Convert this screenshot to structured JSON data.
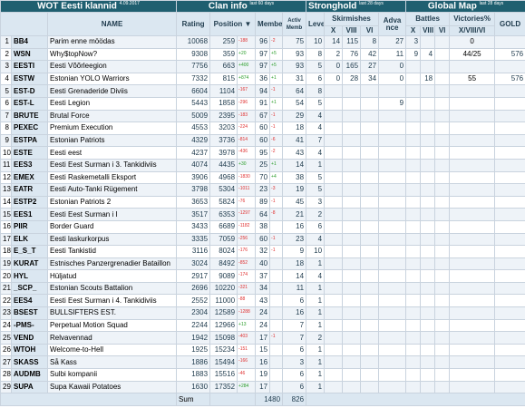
{
  "header": {
    "title": "WOT Eesti klannid",
    "date": "4.09.2017",
    "sections": [
      {
        "title": "Clan info",
        "note": "last 60 days"
      },
      {
        "title": "Stronghold",
        "note": "last 28 days"
      },
      {
        "title": "Global Map",
        "note": "last 28 days"
      }
    ]
  },
  "columns": {
    "name": "NAME",
    "rating": "Rating",
    "position": "Position ▼",
    "members": "Members",
    "active": "Activ Memb",
    "level": "Level",
    "skirmishes": "Skirmishes",
    "advance": "Adva nce",
    "battles": "Battles",
    "victories": "Victories%",
    "gold": "GOLD",
    "tiers": [
      "X",
      "VIII",
      "VI"
    ],
    "victory_tiers": "X/VIII/VI"
  },
  "rows": [
    [
      1,
      "BB4",
      "Parim enne möödas",
      10068,
      259,
      "-188",
      96,
      "-2",
      75,
      10,
      14,
      115,
      8,
      27,
      3,
      null,
      null,
      0,
      null
    ],
    [
      2,
      "WSN",
      "Why$topNow?",
      9308,
      359,
      "+20",
      97,
      "+5",
      93,
      8,
      2,
      76,
      42,
      11,
      9,
      4,
      null,
      "44/25",
      576
    ],
    [
      3,
      "EESTI",
      "Eesti Võõrleegion",
      7756,
      663,
      "+400",
      97,
      "+5",
      93,
      5,
      0,
      165,
      27,
      0,
      null,
      null,
      null,
      null,
      null
    ],
    [
      4,
      "ESTW",
      "Estonian YOLO Warriors",
      7332,
      815,
      "+874",
      36,
      "+1",
      31,
      6,
      0,
      28,
      34,
      0,
      null,
      18,
      null,
      55,
      576
    ],
    [
      5,
      "EST-D",
      "Eesti Grenaderide Diviis",
      6604,
      1104,
      "-167",
      94,
      "-1",
      64,
      8,
      null,
      null,
      null,
      null,
      null,
      null,
      null,
      null,
      null
    ],
    [
      6,
      "EST-L",
      "Eesti Legion",
      5443,
      1858,
      "-296",
      91,
      "+1",
      54,
      5,
      null,
      null,
      null,
      9,
      null,
      null,
      null,
      null,
      null
    ],
    [
      7,
      "BRUTE",
      "Brutal Force",
      5009,
      2395,
      "-183",
      67,
      "-1",
      29,
      4,
      null,
      null,
      null,
      null,
      null,
      null,
      null,
      null,
      null
    ],
    [
      8,
      "PEXEC",
      "Premium Execution",
      4553,
      3203,
      "-224",
      60,
      "-1",
      18,
      4,
      null,
      null,
      null,
      null,
      null,
      null,
      null,
      null,
      null
    ],
    [
      9,
      "ESTPA",
      "Estonian Patriots",
      4329,
      3736,
      "-814",
      60,
      "-6",
      41,
      7,
      null,
      null,
      null,
      null,
      null,
      null,
      null,
      null,
      null
    ],
    [
      10,
      "ESTE",
      "Eesti eest",
      4237,
      3978,
      "-436",
      95,
      "-2",
      43,
      4,
      null,
      null,
      null,
      null,
      null,
      null,
      null,
      null,
      null
    ],
    [
      11,
      "EES3",
      "Eesti Eest Surman i 3. Tankidiviis",
      4074,
      4435,
      "+30",
      25,
      "+1",
      14,
      1,
      null,
      null,
      null,
      null,
      null,
      null,
      null,
      null,
      null
    ],
    [
      12,
      "EMEX",
      "Eesti Raskemetalli Eksport",
      3906,
      4968,
      "-1830",
      70,
      "+4",
      38,
      5,
      null,
      null,
      null,
      null,
      null,
      null,
      null,
      null,
      null
    ],
    [
      13,
      "EATR",
      "Eesti Auto-Tanki Rügement",
      3798,
      5304,
      "-1011",
      23,
      "-3",
      19,
      5,
      null,
      null,
      null,
      null,
      null,
      null,
      null,
      null,
      null
    ],
    [
      14,
      "ESTP2",
      "Estonian Patriots 2",
      3653,
      5824,
      "-76",
      89,
      "-1",
      45,
      3,
      null,
      null,
      null,
      null,
      null,
      null,
      null,
      null,
      null
    ],
    [
      15,
      "EES1",
      "Eesti Eest Surman i I",
      3517,
      6353,
      "-1297",
      64,
      "-8",
      21,
      2,
      null,
      null,
      null,
      null,
      null,
      null,
      null,
      null,
      null
    ],
    [
      16,
      "PIIR",
      "Border Guard",
      3433,
      6689,
      "-1182",
      38,
      null,
      16,
      6,
      null,
      null,
      null,
      null,
      null,
      null,
      null,
      null,
      null
    ],
    [
      17,
      "ELK",
      "Eesti laskurkorpus",
      3335,
      7059,
      "-256",
      60,
      "-1",
      23,
      4,
      null,
      null,
      null,
      null,
      null,
      null,
      null,
      null,
      null
    ],
    [
      18,
      "E_S_T",
      "Eesti Tankistid",
      3116,
      8024,
      "-176",
      32,
      "-1",
      9,
      10,
      null,
      null,
      null,
      null,
      null,
      null,
      null,
      null,
      null
    ],
    [
      19,
      "KURAT",
      "Estnisches Panzergrenadier Bataillon",
      3024,
      8492,
      "-852",
      40,
      null,
      18,
      1,
      null,
      null,
      null,
      null,
      null,
      null,
      null,
      null,
      null
    ],
    [
      20,
      "HYL",
      "Hüljatud",
      2917,
      9089,
      "-174",
      37,
      null,
      14,
      4,
      null,
      null,
      null,
      null,
      null,
      null,
      null,
      null,
      null
    ],
    [
      21,
      "_SCP_",
      "Estonian Scouts Battalion",
      2696,
      10220,
      "-321",
      34,
      null,
      11,
      1,
      null,
      null,
      null,
      null,
      null,
      null,
      null,
      null,
      null
    ],
    [
      22,
      "EES4",
      "Eesti Eest Surman i 4. Tankidiviis",
      2552,
      11000,
      "-88",
      43,
      null,
      6,
      1,
      null,
      null,
      null,
      null,
      null,
      null,
      null,
      null,
      null
    ],
    [
      23,
      "BSEST",
      "BULLSIFTERS EST.",
      2304,
      12589,
      "-1288",
      24,
      null,
      16,
      1,
      null,
      null,
      null,
      null,
      null,
      null,
      null,
      null,
      null
    ],
    [
      24,
      "-PMS-",
      "Perpetual Motion Squad",
      2244,
      12966,
      "+13",
      24,
      null,
      7,
      1,
      null,
      null,
      null,
      null,
      null,
      null,
      null,
      null,
      null
    ],
    [
      25,
      "VEND",
      "Relvavennad",
      1942,
      15098,
      "-403",
      17,
      "-1",
      7,
      2,
      null,
      null,
      null,
      null,
      null,
      null,
      null,
      null,
      null
    ],
    [
      26,
      "WTOH",
      "Welcome-to-Hell",
      1925,
      15234,
      "-151",
      15,
      null,
      6,
      1,
      null,
      null,
      null,
      null,
      null,
      null,
      null,
      null,
      null
    ],
    [
      27,
      "SKASS",
      "Så Kass",
      1886,
      15494,
      "-166",
      16,
      null,
      3,
      1,
      null,
      null,
      null,
      null,
      null,
      null,
      null,
      null,
      null
    ],
    [
      28,
      "AUDMB",
      "Sulbi kompanii",
      1883,
      15516,
      "-46",
      19,
      null,
      6,
      1,
      null,
      null,
      null,
      null,
      null,
      null,
      null,
      null,
      null
    ],
    [
      29,
      "SUPA",
      "Supa Kawaii Potatoes",
      1630,
      17352,
      "+284",
      17,
      null,
      6,
      1,
      null,
      null,
      null,
      null,
      null,
      null,
      null,
      null,
      null
    ]
  ],
  "sum": {
    "label": "Sum",
    "members": 1480,
    "active": 826
  }
}
